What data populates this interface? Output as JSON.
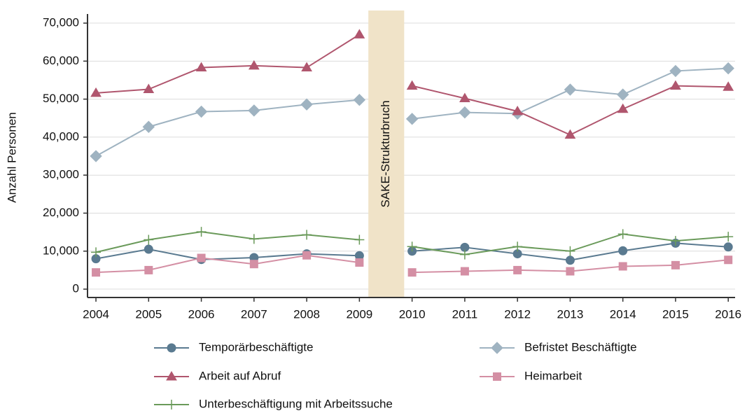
{
  "chart_data": {
    "type": "line",
    "ylabel": "Anzahl Personen",
    "x": [
      2004,
      2005,
      2006,
      2007,
      2008,
      2009,
      2010,
      2011,
      2012,
      2013,
      2014,
      2015,
      2016
    ],
    "xlim": [
      2003.84,
      2016.13
    ],
    "xticks": [
      2004,
      2005,
      2006,
      2007,
      2008,
      2009,
      2010,
      2011,
      2012,
      2013,
      2014,
      2015,
      2016
    ],
    "ylim": [
      -2200,
      72400
    ],
    "yticks": [
      0,
      {
        "value": 10000,
        "label": "10,000"
      },
      {
        "value": 20000,
        "label": "20,000"
      },
      {
        "value": 30000,
        "label": "30,000"
      },
      {
        "value": 40000,
        "label": "40,000"
      },
      {
        "value": 50000,
        "label": "50,000"
      },
      {
        "value": 60000,
        "label": "60,000"
      },
      {
        "value": 70000,
        "label": "70,000"
      }
    ],
    "grid": true,
    "annotation": {
      "text": "SAKE-Strukturbruch",
      "xrange": [
        2009.17,
        2009.85
      ],
      "color": "#f0e3c8"
    },
    "series": [
      {
        "name": "Temporärbeschäftigte",
        "color": "#5a7a90",
        "marker": "circle",
        "values": [
          8000,
          10500,
          7800,
          8300,
          9300,
          8800,
          10000,
          11000,
          9300,
          7600,
          10100,
          12100,
          11100
        ]
      },
      {
        "name": "Befristet Beschäftigte",
        "color": "#9fb3c1",
        "marker": "diamond",
        "values": [
          35000,
          42700,
          46700,
          47000,
          48600,
          49800,
          44800,
          46500,
          46200,
          52500,
          51200,
          57400,
          58100
        ]
      },
      {
        "name": "Arbeit auf Abruf",
        "color": "#b0566e",
        "marker": "triangle",
        "values": [
          51600,
          52600,
          58300,
          58800,
          58300,
          67000,
          53500,
          50200,
          46800,
          40600,
          47400,
          53500,
          53200
        ]
      },
      {
        "name": "Heimarbeit",
        "color": "#d48fa4",
        "marker": "square",
        "values": [
          4400,
          5000,
          8200,
          6600,
          8900,
          7000,
          4400,
          4700,
          5000,
          4700,
          6000,
          6300,
          7700
        ]
      },
      {
        "name": "Unterbeschäftigung mit Arbeitssuche",
        "color": "#6a9a5a",
        "marker": "plus",
        "values": [
          9700,
          13000,
          15100,
          13200,
          14300,
          13000,
          11200,
          9100,
          11200,
          10000,
          14500,
          12700,
          13800
        ]
      }
    ]
  }
}
